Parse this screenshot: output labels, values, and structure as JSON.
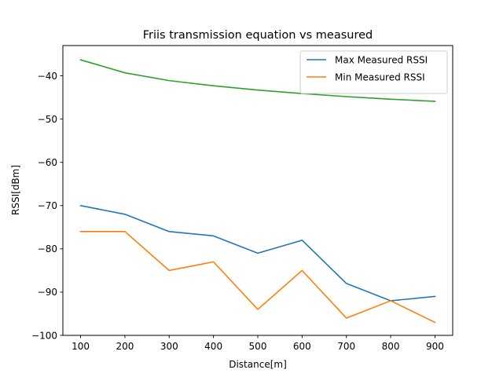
{
  "chart_data": {
    "type": "line",
    "title": "Friis transmission equation vs measured",
    "xlabel": "Distance[m]",
    "ylabel": "RSSI[dBm]",
    "x": [
      100,
      200,
      300,
      400,
      500,
      600,
      700,
      800,
      900
    ],
    "xticks": [
      100,
      200,
      300,
      400,
      500,
      600,
      700,
      800,
      900
    ],
    "yticks": [
      -40,
      -50,
      -60,
      -70,
      -80,
      -90,
      -100
    ],
    "xlim": [
      60,
      940
    ],
    "ylim": [
      -100,
      -33
    ],
    "grid": false,
    "legend_position": "top-right",
    "series": [
      {
        "name": "Max Measured RSSI",
        "color": "#1f77b4",
        "values": [
          -70,
          -72,
          -76,
          -77,
          -81,
          -78,
          -88,
          -92,
          -91
        ]
      },
      {
        "name": "Min Measured RSSI",
        "color": "#ff7f0e",
        "values": [
          -76,
          -76,
          -85,
          -83,
          -94,
          -85,
          -96,
          -92,
          -97
        ]
      },
      {
        "color": "#2ca02c",
        "values": [
          -36.3,
          -39.3,
          -41.1,
          -42.3,
          -43.3,
          -44.1,
          -44.8,
          -45.4,
          -45.9
        ]
      }
    ]
  }
}
